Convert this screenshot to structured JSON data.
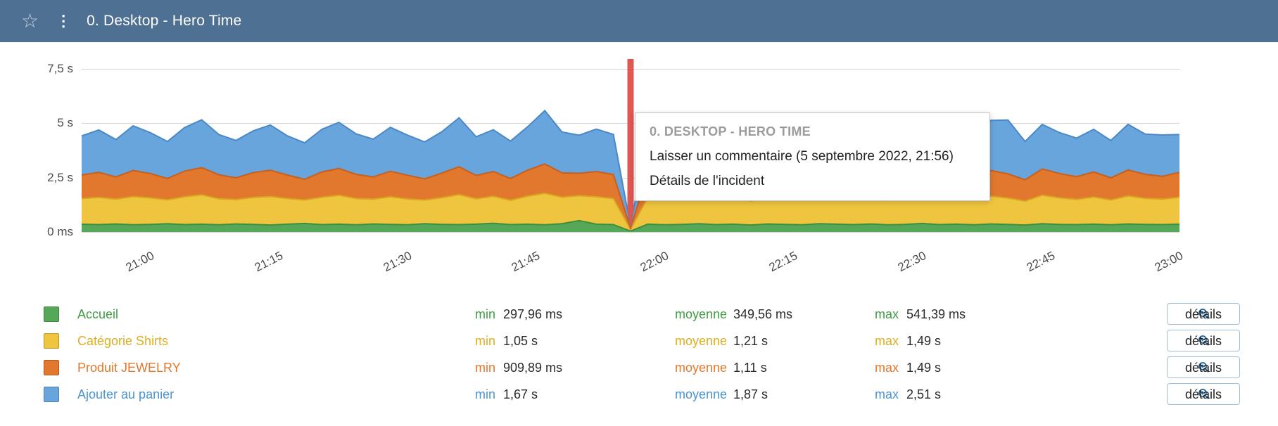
{
  "header": {
    "title": "0. Desktop - Hero Time",
    "background": "#4e7093"
  },
  "tooltip": {
    "title": "0. DESKTOP - HERO TIME",
    "comment": "Laisser un commentaire (5 septembre 2022, 21:56)",
    "incident": "Détails de l'incident"
  },
  "chart_data": {
    "type": "area",
    "stacked": true,
    "title": "0. Desktop - Hero Time",
    "ylim": [
      0,
      7.5
    ],
    "grid": true,
    "x_range": [
      "20:52",
      "23:00"
    ],
    "x_interval_min": 2,
    "y_ticks": [
      {
        "label": "7,5 s",
        "v": 7.5
      },
      {
        "label": "5 s",
        "v": 5
      },
      {
        "label": "2,5 s",
        "v": 2.5
      },
      {
        "label": "0 ms",
        "v": 0
      }
    ],
    "x_ticks": [
      {
        "label": "21:00",
        "f": 0.0625
      },
      {
        "label": "21:15",
        "f": 0.1797
      },
      {
        "label": "21:30",
        "f": 0.2969
      },
      {
        "label": "21:45",
        "f": 0.4141
      },
      {
        "label": "22:00",
        "f": 0.5313
      },
      {
        "label": "22:15",
        "f": 0.6484
      },
      {
        "label": "22:30",
        "f": 0.7656
      },
      {
        "label": "22:45",
        "f": 0.8828
      },
      {
        "label": "23:00",
        "f": 1.0
      }
    ],
    "incident": {
      "f": 0.5,
      "time": "21:56",
      "color": "#dd5753"
    },
    "series": [
      {
        "name": "Accueil",
        "color": "#55a858",
        "stroke": "#3c8f3f",
        "values": [
          0.36,
          0.34,
          0.37,
          0.33,
          0.35,
          0.38,
          0.34,
          0.36,
          0.33,
          0.37,
          0.35,
          0.32,
          0.36,
          0.39,
          0.34,
          0.36,
          0.33,
          0.37,
          0.35,
          0.33,
          0.38,
          0.35,
          0.34,
          0.36,
          0.4,
          0.34,
          0.36,
          0.33,
          0.38,
          0.52,
          0.36,
          0.34,
          0.04,
          0.36,
          0.33,
          0.35,
          0.38,
          0.34,
          0.36,
          0.32,
          0.37,
          0.35,
          0.33,
          0.38,
          0.36,
          0.34,
          0.37,
          0.33,
          0.35,
          0.39,
          0.34,
          0.36,
          0.33,
          0.37,
          0.35,
          0.32,
          0.38,
          0.35,
          0.34,
          0.36,
          0.33,
          0.37,
          0.35,
          0.34,
          0.36
        ]
      },
      {
        "name": "Catégorie Shirts",
        "color": "#efc53f",
        "stroke": "#d9a420",
        "values": [
          1.18,
          1.25,
          1.14,
          1.3,
          1.22,
          1.1,
          1.28,
          1.35,
          1.2,
          1.12,
          1.24,
          1.31,
          1.18,
          1.08,
          1.26,
          1.33,
          1.21,
          1.14,
          1.27,
          1.19,
          1.09,
          1.23,
          1.38,
          1.17,
          1.24,
          1.12,
          1.29,
          1.45,
          1.22,
          1.15,
          1.26,
          1.2,
          0.08,
          1.23,
          1.13,
          1.21,
          1.32,
          1.18,
          1.25,
          1.11,
          1.28,
          1.2,
          1.14,
          1.3,
          1.24,
          1.16,
          1.27,
          1.12,
          1.22,
          1.36,
          1.18,
          1.25,
          1.13,
          1.28,
          1.21,
          1.1,
          1.31,
          1.22,
          1.16,
          1.25,
          1.14,
          1.29,
          1.2,
          1.17,
          1.24
        ]
      },
      {
        "name": "Produit JEWELRY",
        "color": "#e2782e",
        "stroke": "#c75f1d",
        "values": [
          1.08,
          1.15,
          1.02,
          1.2,
          1.12,
          0.98,
          1.18,
          1.25,
          1.1,
          1.0,
          1.14,
          1.21,
          1.08,
          0.95,
          1.16,
          1.23,
          1.11,
          1.02,
          1.17,
          1.09,
          0.97,
          1.13,
          1.28,
          1.07,
          1.14,
          1.0,
          1.19,
          1.35,
          1.12,
          1.03,
          1.16,
          1.1,
          0.06,
          1.13,
          1.01,
          1.11,
          1.22,
          1.08,
          1.15,
          0.99,
          1.18,
          1.1,
          1.02,
          1.2,
          1.14,
          1.04,
          1.17,
          1.0,
          1.12,
          1.26,
          1.08,
          1.15,
          1.01,
          1.18,
          1.11,
          0.98,
          1.21,
          1.12,
          1.04,
          1.15,
          1.02,
          1.19,
          1.1,
          1.05,
          1.14
        ]
      },
      {
        "name": "Ajouter au panier",
        "color": "#68a5dc",
        "stroke": "#4a88c7",
        "values": [
          1.8,
          1.95,
          1.72,
          2.05,
          1.88,
          1.7,
          2.0,
          2.2,
          1.85,
          1.72,
          1.92,
          2.08,
          1.8,
          1.68,
          1.96,
          2.12,
          1.86,
          1.74,
          2.02,
          1.84,
          1.7,
          1.9,
          2.25,
          1.78,
          1.92,
          1.72,
          2.0,
          2.45,
          1.88,
          1.75,
          1.95,
          1.85,
          0.08,
          1.9,
          1.74,
          1.86,
          2.06,
          1.8,
          1.94,
          1.7,
          2.0,
          1.86,
          1.73,
          2.04,
          1.92,
          1.76,
          1.98,
          1.72,
          1.88,
          2.18,
          1.8,
          1.95,
          1.74,
          2.3,
          2.48,
          1.76,
          2.05,
          1.88,
          1.78,
          1.96,
          1.72,
          2.1,
          1.85,
          1.9,
          1.74
        ]
      }
    ]
  },
  "legend": {
    "min_label": "min",
    "avg_label": "moyenne",
    "max_label": "max",
    "details_label": "détails",
    "rows": [
      {
        "name": "Accueil",
        "color": "#3f9c42",
        "min": "297,96 ms",
        "avg": "349,56 ms",
        "max": "541,39 ms"
      },
      {
        "name": "Catégorie Shirts",
        "color": "#deae1e",
        "min": "1,05 s",
        "avg": "1,21 s",
        "max": "1,49 s"
      },
      {
        "name": "Produit JEWELRY",
        "color": "#e2772a",
        "min": "909,89 ms",
        "avg": "1,11 s",
        "max": "1,49 s"
      },
      {
        "name": "Ajouter au panier",
        "color": "#4a94d4",
        "min": "1,67 s",
        "avg": "1,87 s",
        "max": "2,51 s"
      }
    ]
  }
}
